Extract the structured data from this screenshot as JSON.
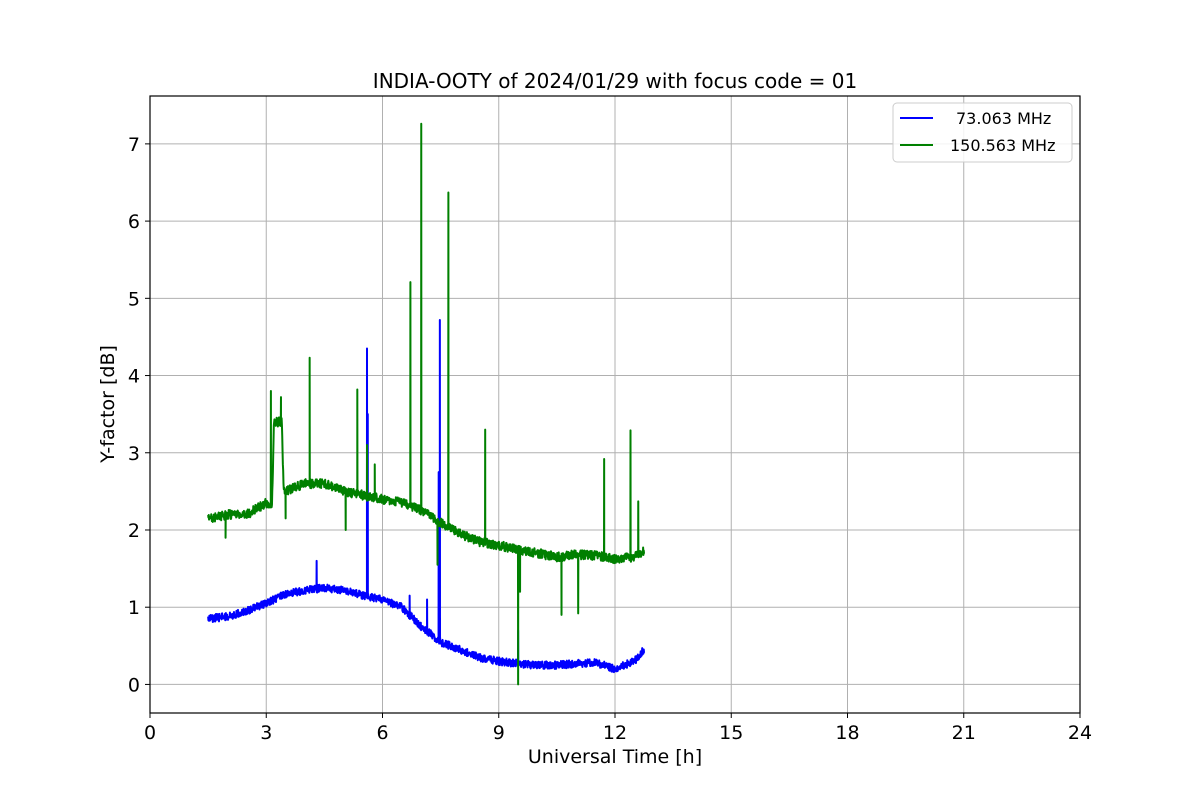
{
  "chart_data": {
    "type": "line",
    "title": "INDIA-OOTY of 2024/01/29 with focus code = 01",
    "xlabel": "Universal Time [h]",
    "ylabel": "Y-factor [dB]",
    "xlim": [
      0,
      24
    ],
    "ylim": [
      -0.37,
      7.62
    ],
    "xticks": [
      0,
      3,
      6,
      9,
      12,
      15,
      18,
      21,
      24
    ],
    "xtick_labels": [
      "0",
      "3",
      "6",
      "9",
      "12",
      "15",
      "18",
      "21",
      "24"
    ],
    "yticks": [
      0,
      1,
      2,
      3,
      4,
      5,
      6,
      7
    ],
    "ytick_labels": [
      "0",
      "1",
      "2",
      "3",
      "4",
      "5",
      "6",
      "7"
    ],
    "grid": true,
    "legend_position": "top-right",
    "series": [
      {
        "name": "73.063 MHz",
        "color": "#0000ff",
        "noise": 0.05,
        "baseline": [
          [
            1.5,
            0.85
          ],
          [
            2.0,
            0.88
          ],
          [
            2.5,
            0.95
          ],
          [
            3.0,
            1.05
          ],
          [
            3.5,
            1.17
          ],
          [
            4.0,
            1.22
          ],
          [
            4.5,
            1.25
          ],
          [
            5.0,
            1.22
          ],
          [
            5.5,
            1.15
          ],
          [
            6.0,
            1.1
          ],
          [
            6.5,
            1.0
          ],
          [
            7.0,
            0.75
          ],
          [
            7.5,
            0.55
          ],
          [
            8.0,
            0.45
          ],
          [
            8.5,
            0.35
          ],
          [
            9.0,
            0.3
          ],
          [
            9.5,
            0.27
          ],
          [
            10.0,
            0.25
          ],
          [
            10.5,
            0.25
          ],
          [
            11.0,
            0.27
          ],
          [
            11.5,
            0.28
          ],
          [
            12.0,
            0.2
          ],
          [
            12.5,
            0.3
          ],
          [
            12.75,
            0.45
          ]
        ],
        "spikes": [
          [
            4.3,
            1.6
          ],
          [
            5.6,
            4.35
          ],
          [
            5.62,
            3.5
          ],
          [
            7.48,
            4.72
          ],
          [
            7.45,
            2.75
          ],
          [
            6.7,
            1.15
          ],
          [
            7.15,
            1.1
          ],
          [
            9.5,
            0.7
          ]
        ]
      },
      {
        "name": "150.563 MHz",
        "color": "#008000",
        "noise": 0.06,
        "baseline": [
          [
            1.5,
            2.15
          ],
          [
            2.0,
            2.2
          ],
          [
            2.5,
            2.2
          ],
          [
            3.0,
            2.35
          ],
          [
            3.15,
            2.35
          ],
          [
            3.2,
            3.4
          ],
          [
            3.4,
            3.4
          ],
          [
            3.45,
            2.5
          ],
          [
            4.0,
            2.6
          ],
          [
            4.5,
            2.6
          ],
          [
            5.0,
            2.5
          ],
          [
            5.5,
            2.45
          ],
          [
            6.0,
            2.4
          ],
          [
            6.5,
            2.35
          ],
          [
            7.0,
            2.25
          ],
          [
            7.5,
            2.1
          ],
          [
            8.0,
            1.95
          ],
          [
            8.5,
            1.85
          ],
          [
            9.0,
            1.8
          ],
          [
            9.5,
            1.75
          ],
          [
            10.0,
            1.7
          ],
          [
            10.5,
            1.65
          ],
          [
            11.0,
            1.68
          ],
          [
            11.5,
            1.67
          ],
          [
            12.0,
            1.62
          ],
          [
            12.5,
            1.65
          ],
          [
            12.75,
            1.72
          ]
        ],
        "spikes": [
          [
            1.95,
            1.9
          ],
          [
            3.12,
            3.8
          ],
          [
            3.38,
            3.72
          ],
          [
            3.5,
            2.15
          ],
          [
            4.12,
            4.23
          ],
          [
            5.35,
            3.82
          ],
          [
            5.05,
            2.0
          ],
          [
            5.6,
            3.1
          ],
          [
            5.8,
            2.85
          ],
          [
            6.72,
            5.21
          ],
          [
            7.0,
            7.26
          ],
          [
            7.7,
            6.37
          ],
          [
            7.42,
            1.55
          ],
          [
            8.65,
            3.3
          ],
          [
            9.5,
            0.0
          ],
          [
            9.55,
            1.2
          ],
          [
            10.62,
            0.9
          ],
          [
            11.05,
            0.92
          ],
          [
            11.72,
            2.92
          ],
          [
            12.4,
            3.29
          ],
          [
            12.6,
            2.37
          ]
        ]
      }
    ]
  }
}
